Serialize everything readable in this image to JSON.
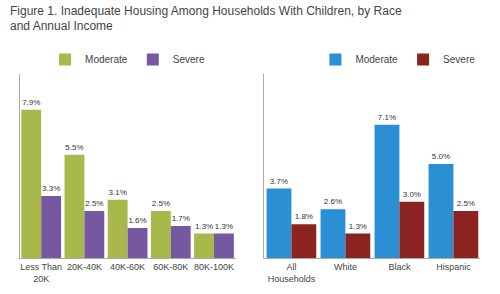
{
  "title": "Figure 1. Inadequate Housing Among Households With Children, by Race\nand Annual Income",
  "chart_data": [
    {
      "type": "bar",
      "categories": [
        "Less Than\n20K",
        "20K-40K",
        "40K-60K",
        "60K-80K",
        "80K-100K"
      ],
      "series": [
        {
          "name": "Moderate",
          "color": "#a8b84a",
          "values": [
            7.9,
            5.5,
            3.1,
            2.5,
            1.3
          ],
          "value_labels": [
            "7.9%",
            "5.5%",
            "3.1%",
            "2.5%",
            "1.3%"
          ]
        },
        {
          "name": "Severe",
          "color": "#7558a0",
          "values": [
            3.3,
            2.5,
            1.6,
            1.7,
            1.3
          ],
          "value_labels": [
            "3.3%",
            "2.5%",
            "1.6%",
            "1.7%",
            "1.3%"
          ]
        }
      ],
      "ylim": [
        0,
        9.8
      ],
      "grid": false,
      "legend": "upper center",
      "data_labels": true,
      "tick_labels": "x"
    },
    {
      "type": "bar",
      "categories": [
        "All\nHouseholds",
        "White",
        "Black",
        "Hispanic"
      ],
      "series": [
        {
          "name": "Moderate",
          "color": "#2b8fd4",
          "values": [
            3.7,
            2.6,
            7.1,
            5.0
          ],
          "value_labels": [
            "3.7%",
            "2.6%",
            "7.1%",
            "5.0%"
          ]
        },
        {
          "name": "Severe",
          "color": "#8b2420",
          "values": [
            1.8,
            1.3,
            3.0,
            2.5
          ],
          "value_labels": [
            "1.8%",
            "1.3%",
            "3.0%",
            "2.5%"
          ]
        }
      ],
      "ylim": [
        0,
        9.8
      ],
      "grid": false,
      "legend": "upper right",
      "data_labels": true,
      "tick_labels": "x"
    }
  ]
}
